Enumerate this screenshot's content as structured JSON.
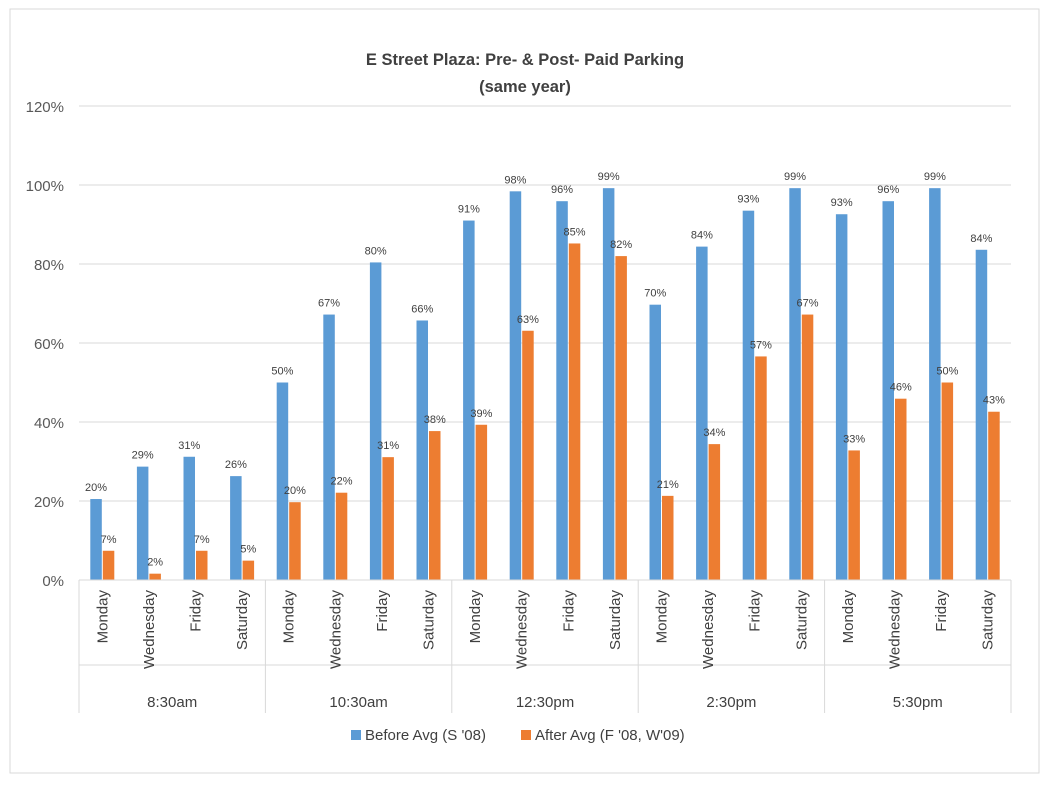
{
  "chart_data": {
    "type": "bar",
    "title": "E Street Plaza: Pre- & Post- Paid Parking",
    "subtitle": "(same year)",
    "xlabel": "",
    "ylabel": "",
    "ylim": [
      0,
      120
    ],
    "y_ticks": [
      "0%",
      "20%",
      "40%",
      "60%",
      "80%",
      "100%",
      "120%"
    ],
    "y_tick_values": [
      0,
      20,
      40,
      60,
      80,
      100,
      120
    ],
    "grid": true,
    "legend_position": "bottom",
    "groups": [
      {
        "label": "8:30am",
        "days": [
          "Monday",
          "Wednesday",
          "Friday",
          "Saturday"
        ]
      },
      {
        "label": "10:30am",
        "days": [
          "Monday",
          "Wednesday",
          "Friday",
          "Saturday"
        ]
      },
      {
        "label": "12:30pm",
        "days": [
          "Monday",
          "Wednesday",
          "Friday",
          "Saturday"
        ]
      },
      {
        "label": "2:30pm",
        "days": [
          "Monday",
          "Wednesday",
          "Friday",
          "Saturday"
        ]
      },
      {
        "label": "5:30pm",
        "days": [
          "Monday",
          "Wednesday",
          "Friday",
          "Saturday"
        ]
      }
    ],
    "series": [
      {
        "name": "Before Avg (S '08)",
        "color": "#5b9bd5",
        "values": [
          20.5,
          28.7,
          31.2,
          26.3,
          50,
          67.2,
          80.4,
          65.7,
          91,
          98.4,
          95.9,
          99.2,
          69.7,
          84.4,
          93.5,
          99.2,
          92.6,
          95.9,
          99.2,
          83.6
        ],
        "labels": [
          "20%",
          "29%",
          "31%",
          "26%",
          "50%",
          "67%",
          "80%",
          "66%",
          "91%",
          "98%",
          "96%",
          "99%",
          "70%",
          "84%",
          "93%",
          "99%",
          "93%",
          "96%",
          "99%",
          "84%"
        ]
      },
      {
        "name": "After Avg (F '08, W'09)",
        "color": "#ed7d31",
        "values": [
          7.4,
          1.6,
          7.4,
          4.9,
          19.7,
          22.1,
          31.1,
          37.7,
          39.3,
          63.1,
          85.2,
          82,
          21.3,
          34.4,
          56.6,
          67.2,
          32.8,
          45.9,
          50,
          42.6
        ],
        "labels": [
          "7%",
          "2%",
          "7%",
          "5%",
          "20%",
          "22%",
          "31%",
          "38%",
          "39%",
          "63%",
          "85%",
          "82%",
          "21%",
          "34%",
          "57%",
          "67%",
          "33%",
          "46%",
          "50%",
          "43%"
        ]
      }
    ]
  }
}
